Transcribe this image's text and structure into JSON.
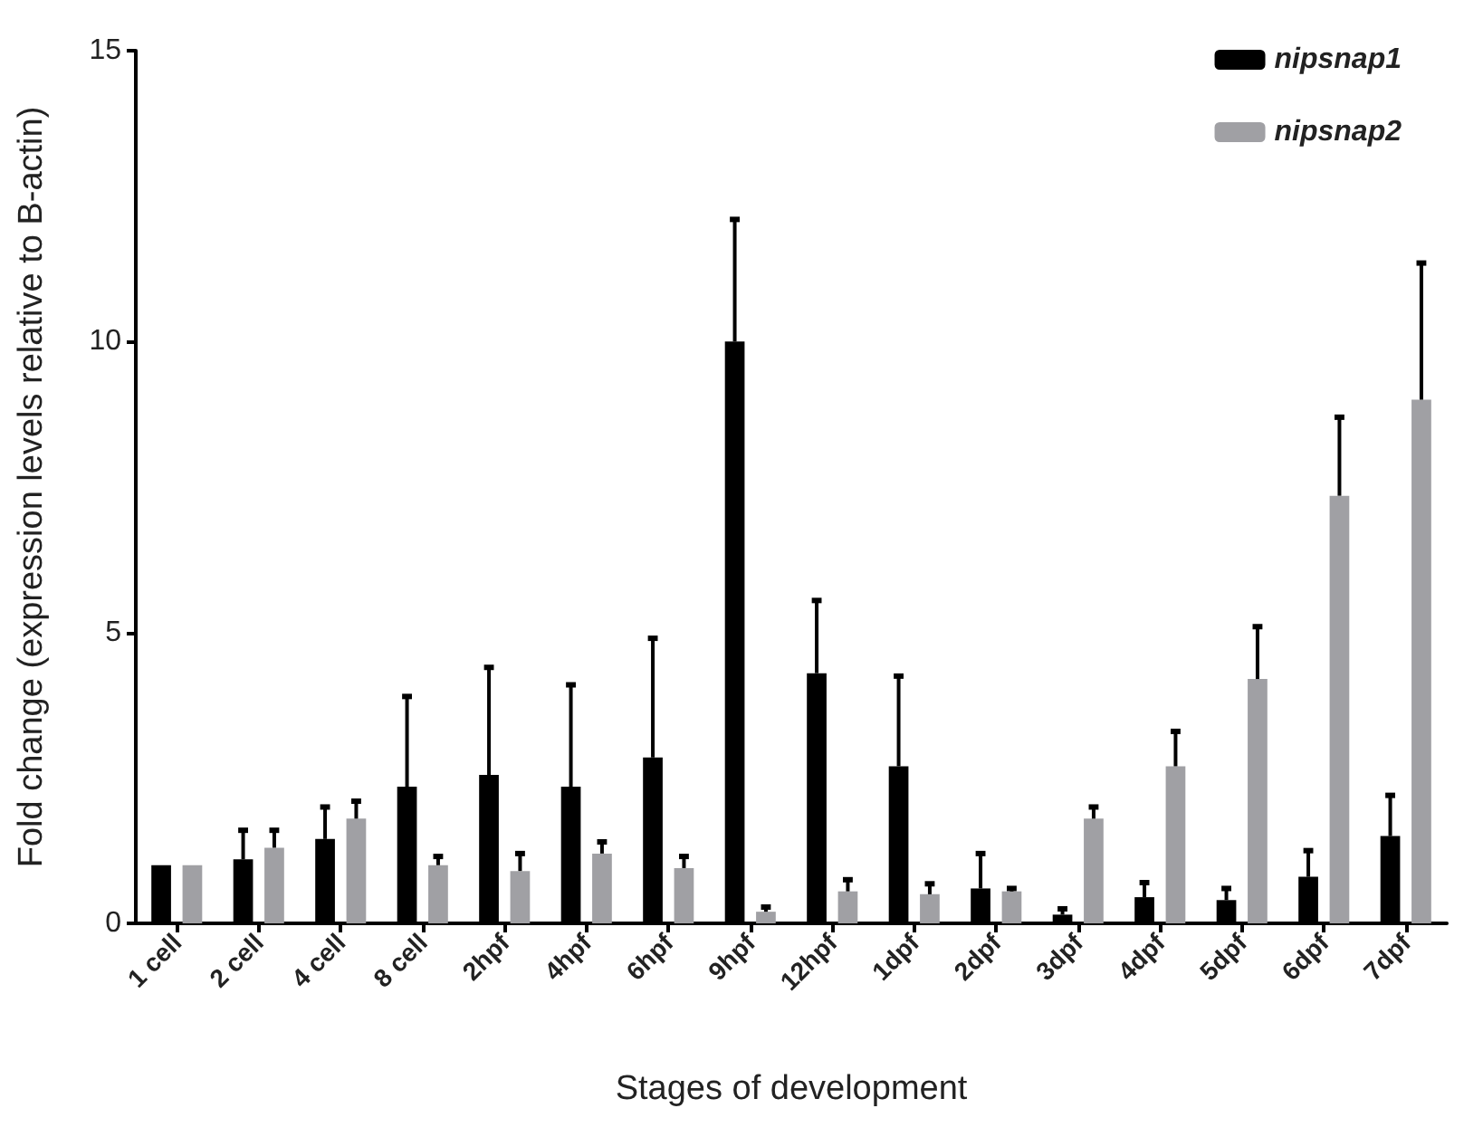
{
  "chart_data": {
    "type": "bar",
    "xlabel": "Stages of development",
    "ylabel": "Fold change (expression levels relative to B-actin)",
    "categories": [
      "1 cell",
      "2 cell",
      "4 cell",
      "8 cell",
      "2hpf",
      "4hpf",
      "6hpf",
      "9hpf",
      "12hpf",
      "1dpf",
      "2dpf",
      "3dpf",
      "4dpf",
      "5dpf",
      "6dpf",
      "7dpf"
    ],
    "series": [
      {
        "name": "nipsnap1",
        "color": "#000000",
        "values": [
          1,
          1.1,
          1.45,
          2.35,
          2.55,
          2.35,
          2.85,
          10.0,
          4.3,
          2.7,
          0.6,
          0.15,
          0.45,
          0.4,
          0.8,
          1.5
        ],
        "errors": [
          null,
          [
            1.1,
            1.6
          ],
          [
            1.45,
            2.0
          ],
          [
            2.35,
            3.9
          ],
          [
            2.55,
            4.4
          ],
          [
            2.35,
            4.1
          ],
          [
            2.85,
            4.9
          ],
          [
            10.0,
            12.1
          ],
          [
            4.3,
            5.55
          ],
          [
            2.7,
            4.25
          ],
          [
            0.6,
            1.2
          ],
          [
            0.15,
            0.25
          ],
          [
            0.45,
            0.7
          ],
          [
            0.4,
            0.6
          ],
          [
            0.8,
            1.25
          ],
          [
            1.5,
            2.2
          ]
        ]
      },
      {
        "name": "nipsnap2",
        "color": "#a0a0a4",
        "values": [
          1,
          1.3,
          1.8,
          1.0,
          0.9,
          1.2,
          0.95,
          0.2,
          0.55,
          0.5,
          0.55,
          1.8,
          2.7,
          4.2,
          7.35,
          9.0
        ],
        "errors": [
          null,
          [
            1.3,
            1.6
          ],
          [
            1.8,
            2.1
          ],
          [
            1.0,
            1.15
          ],
          [
            0.9,
            1.2
          ],
          [
            1.2,
            1.4
          ],
          [
            0.95,
            1.15
          ],
          [
            0.2,
            0.28
          ],
          [
            0.55,
            0.75
          ],
          [
            0.5,
            0.68
          ],
          [
            0.55,
            0.6
          ],
          [
            1.8,
            2.0
          ],
          [
            2.7,
            3.3
          ],
          [
            4.2,
            5.1
          ],
          [
            7.35,
            8.7
          ],
          [
            9.0,
            11.35
          ]
        ]
      }
    ],
    "ylim": [
      0,
      15
    ],
    "yticks": [
      0,
      5,
      10,
      15
    ],
    "grid": false,
    "legend": "top right"
  }
}
